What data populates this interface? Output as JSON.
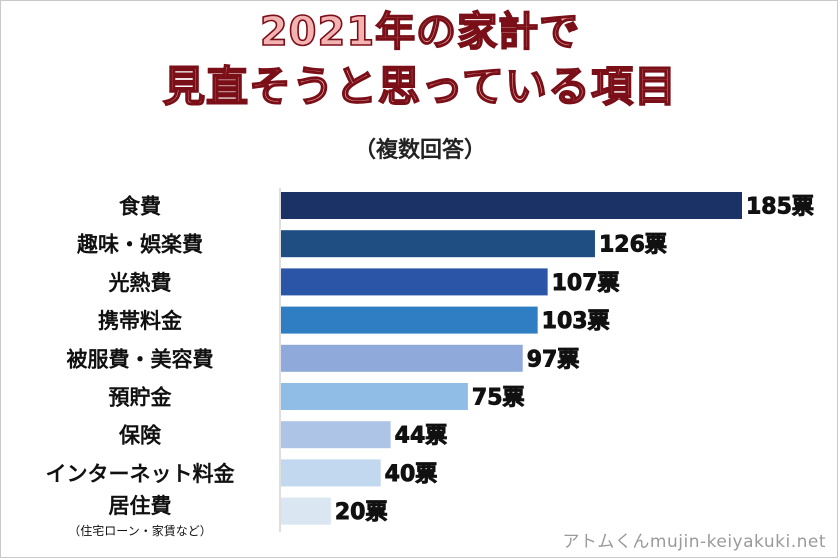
{
  "chart_data": {
    "type": "bar",
    "orientation": "horizontal",
    "title_lines": [
      "2021年の家計で",
      "見直そうと思っている項目"
    ],
    "subtitle": "（複数回答）",
    "categories": [
      "食費",
      "趣味・娯楽費",
      "光熱費",
      "携帯料金",
      "被服費・美容費",
      "預貯金",
      "保険",
      "インターネット料金",
      "居住費"
    ],
    "category_notes": [
      "",
      "",
      "",
      "",
      "",
      "",
      "",
      "",
      "（住宅ローン・家賃など）"
    ],
    "values": [
      185,
      126,
      107,
      103,
      97,
      75,
      44,
      40,
      20
    ],
    "value_suffix": "票",
    "bar_colors": [
      "#1b3266",
      "#1f4f82",
      "#2b55a7",
      "#2f7dc2",
      "#8fa9da",
      "#8fbde6",
      "#aec4e6",
      "#c2d8ef",
      "#dbe6f3"
    ],
    "value_label_fill": "#f2f20a",
    "xlim": [
      0,
      185
    ],
    "grid": false,
    "legend": "none"
  },
  "credit": "アトムくんmujin-keiyakuki.net"
}
